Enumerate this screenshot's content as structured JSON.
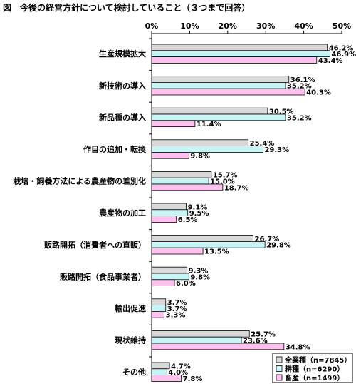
{
  "title": "図　今後の経営方針について検討していること（３つまで回答）",
  "chart_data": {
    "type": "bar",
    "orientation": "horizontal",
    "xlim": [
      0,
      50
    ],
    "x_ticks": [
      "0%",
      "10%",
      "20%",
      "30%",
      "40%",
      "50%"
    ],
    "categories": [
      "生産規模拡大",
      "新技術の導入",
      "新品種の導入",
      "作目の追加・転換",
      "栽培・飼養方法による農産物の差別化",
      "農産物の加工",
      "販路開拓（消費者への直販）",
      "販路開拓（食品事業者）",
      "輸出促進",
      "現状維持",
      "その他"
    ],
    "series": [
      {
        "name": "全業種（n=7845）",
        "color": "#d9d9d9",
        "values": [
          46.2,
          36.1,
          30.5,
          25.4,
          15.7,
          9.1,
          26.7,
          9.3,
          3.7,
          25.7,
          4.7
        ],
        "labels": [
          "46.2%",
          "36.1%",
          "30.5%",
          "25.4%",
          "15.7%",
          "9.1%",
          "26.7%",
          "9.3%",
          "3.7%",
          "25.7%",
          "4.7%"
        ]
      },
      {
        "name": "耕種（n=6290）",
        "color": "#c7f5f5",
        "values": [
          46.9,
          35.2,
          35.2,
          29.3,
          15.0,
          9.5,
          29.8,
          9.8,
          3.7,
          23.6,
          4.0
        ],
        "labels": [
          "46.9%",
          "35.2%",
          "35.2%",
          "29.3%",
          "15.0%",
          "9.5%",
          "29.8%",
          "9.8%",
          "3.7%",
          "23.6%",
          "4.0%"
        ]
      },
      {
        "name": "畜産（n=1499）",
        "color": "#ffc2ef",
        "values": [
          43.4,
          40.3,
          11.4,
          9.8,
          18.7,
          6.5,
          13.5,
          6.0,
          3.3,
          34.8,
          7.8
        ],
        "labels": [
          "43.4%",
          "40.3%",
          "11.4%",
          "9.8%",
          "18.7%",
          "6.5%",
          "13.5%",
          "6.0%",
          "3.3%",
          "34.8%",
          "7.8%"
        ]
      }
    ],
    "legend_position": "bottom-right",
    "grid": false
  }
}
